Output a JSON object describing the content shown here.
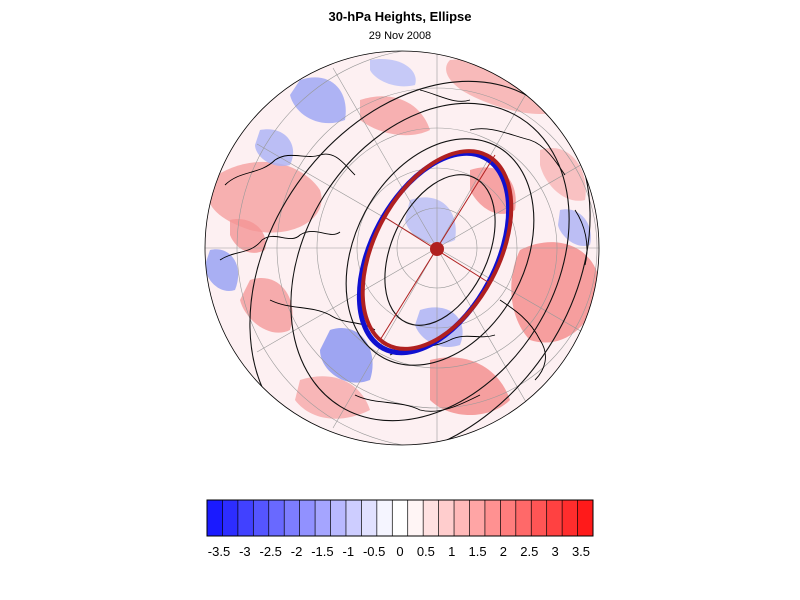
{
  "title": "30-hPa Heights, Ellipse",
  "subtitle": "29 Nov 2008",
  "colorbar": {
    "labels": [
      "-3.5",
      "-3",
      "-2.5",
      "-2",
      "-1.5",
      "-1",
      "-0.5",
      "0",
      "0.5",
      "1",
      "1.5",
      "2",
      "2.5",
      "3",
      "3.5"
    ],
    "colors": [
      "#1a1aff",
      "#2d2dff",
      "#4141ff",
      "#5555ff",
      "#6969ff",
      "#7d7dff",
      "#9191ff",
      "#a5a5ff",
      "#b9b9ff",
      "#cdcdff",
      "#e1e1ff",
      "#f5f5ff",
      "#ffffff",
      "#fff5f5",
      "#ffe1e1",
      "#ffcdcd",
      "#ffb9b9",
      "#ffa5a5",
      "#ff9191",
      "#ff7d7d",
      "#ff6969",
      "#ff5555",
      "#ff4141",
      "#ff2d2d",
      "#ff1a1a"
    ]
  },
  "colors": {
    "ellipse_blue": "#1010d0",
    "ellipse_red": "#b02020",
    "contour": "#111111",
    "grid": "#999999"
  }
}
